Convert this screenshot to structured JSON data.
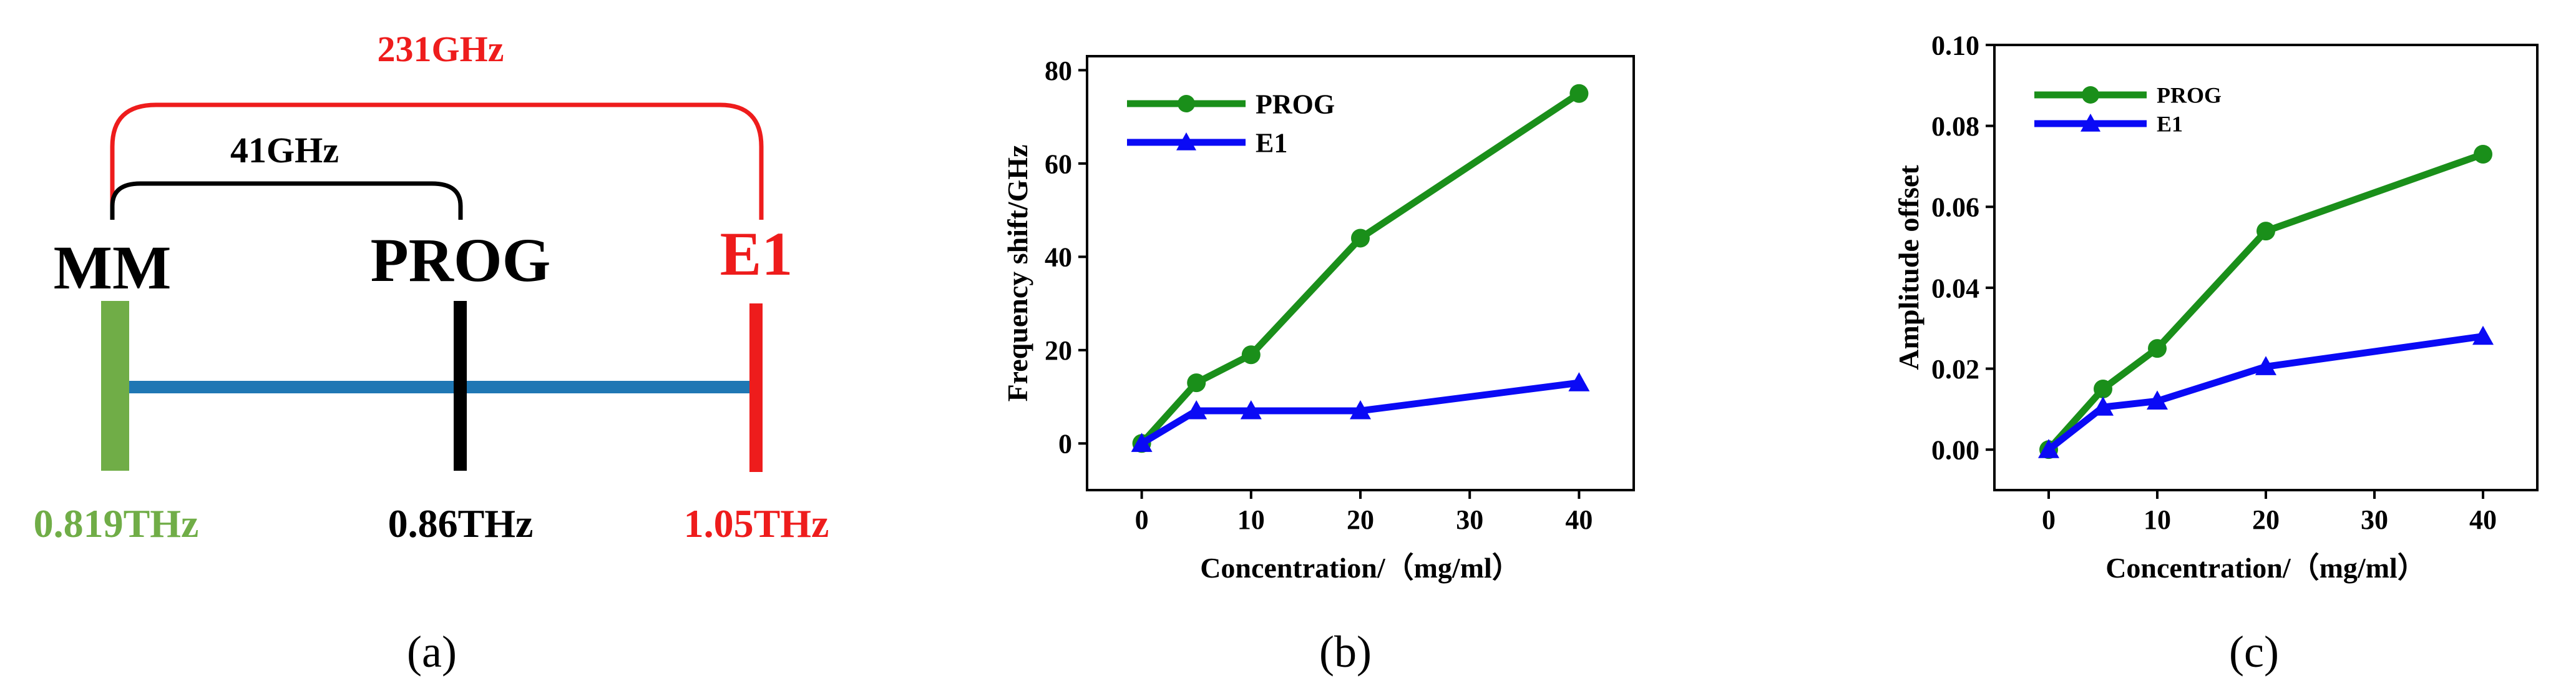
{
  "panel_a": {
    "caption": "(a)",
    "bracket_outer_label": "231GHz",
    "bracket_inner_label": "41GHz",
    "markers": [
      {
        "name": "MM",
        "freq_label": "0.819THz",
        "color": "#70ad47"
      },
      {
        "name": "PROG",
        "freq_label": "0.86THz",
        "color": "#000000"
      },
      {
        "name": "E1",
        "freq_label": "1.05THz",
        "color": "#ee1c1c"
      }
    ],
    "axis_color": "#1f77b4",
    "outer_color": "#ee1c1c",
    "inner_color": "#000000"
  },
  "chart_data": [
    {
      "type": "line",
      "panel": "b",
      "caption": "(b)",
      "title": "",
      "xlabel": "Concentration/（mg/ml）",
      "ylabel": "Frequency shift/GHz",
      "xlim": [
        -5,
        45
      ],
      "ylim": [
        -10,
        83
      ],
      "xticks": [
        0,
        10,
        20,
        30,
        40
      ],
      "yticks": [
        0,
        20,
        40,
        60,
        80
      ],
      "ytick_labels": [
        "0",
        "20",
        "40",
        "60",
        "80"
      ],
      "legend_position": "top-left",
      "series": [
        {
          "name": "PROG",
          "color": "#1a8f1a",
          "marker": "circle",
          "x": [
            0,
            5,
            10,
            20,
            40
          ],
          "y": [
            0,
            13,
            19,
            44,
            75
          ]
        },
        {
          "name": "E1",
          "color": "#0a0af5",
          "marker": "triangle",
          "x": [
            0,
            5,
            10,
            20,
            40
          ],
          "y": [
            0,
            7,
            7,
            7,
            13
          ]
        }
      ]
    },
    {
      "type": "line",
      "panel": "c",
      "caption": "(c)",
      "title": "",
      "xlabel": "Concentration/（mg/ml）",
      "ylabel": "Amplitude offset",
      "xlim": [
        -5,
        45
      ],
      "ylim": [
        -0.01,
        0.1
      ],
      "xticks": [
        0,
        10,
        20,
        30,
        40
      ],
      "yticks": [
        0,
        0.02,
        0.04,
        0.06,
        0.08,
        0.1
      ],
      "ytick_labels": [
        "0.00",
        "0.02",
        "0.04",
        "0.06",
        "0.08",
        "0.10"
      ],
      "legend_position": "top-left",
      "series": [
        {
          "name": "PROG",
          "color": "#1a8f1a",
          "marker": "circle",
          "x": [
            0,
            5,
            10,
            20,
            40
          ],
          "y": [
            0,
            0.015,
            0.025,
            0.054,
            0.073
          ]
        },
        {
          "name": "E1",
          "color": "#0a0af5",
          "marker": "triangle",
          "x": [
            0,
            5,
            10,
            20,
            40
          ],
          "y": [
            0,
            0.0105,
            0.012,
            0.0205,
            0.028
          ]
        }
      ]
    }
  ]
}
